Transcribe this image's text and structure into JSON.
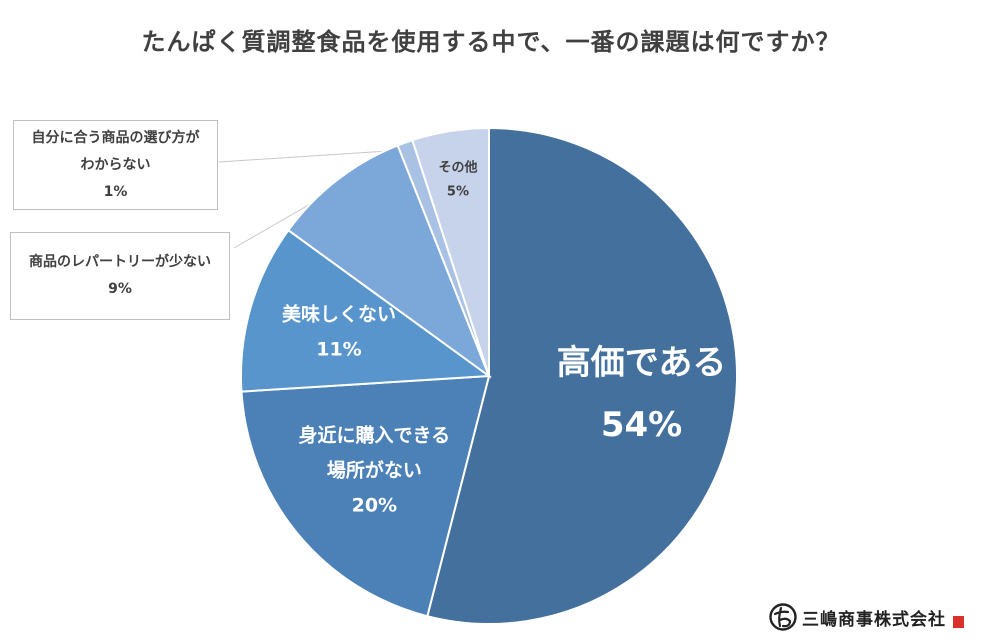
{
  "title": "たんぱく質調整食品を使用する中で、一番の課題は何ですか？",
  "brand": {
    "name": "三嶋商事株式会社"
  },
  "chart_data": {
    "type": "pie",
    "title": "たんぱく質調整食品を使用する中で、一番の課題は何ですか？",
    "start": "12 o'clock, clockwise",
    "slices": [
      {
        "label": "高価である",
        "label_lines": [
          "高価である"
        ],
        "value": 54,
        "value_label": "54%",
        "color": "#43709c",
        "label_placement": "inside"
      },
      {
        "label": "身近に購入できる場所がない",
        "label_lines": [
          "身近に購入できる",
          "場所がない"
        ],
        "value": 20,
        "value_label": "20%",
        "color": "#4c81b7",
        "label_placement": "inside"
      },
      {
        "label": "美味しくない",
        "label_lines": [
          "美味しくない"
        ],
        "value": 11,
        "value_label": "11%",
        "color": "#5895cc",
        "label_placement": "inside"
      },
      {
        "label": "商品のレパートリーが少ない",
        "label_lines": [
          "商品のレパートリーが少ない"
        ],
        "value": 9,
        "value_label": "9%",
        "color": "#7ba7d9",
        "label_placement": "callout"
      },
      {
        "label": "自分に合う商品の選び方がわからない",
        "label_lines": [
          "自分に合う商品の選び方が",
          "わからない"
        ],
        "value": 1,
        "value_label": "1%",
        "color": "#a9c1e2",
        "label_placement": "callout"
      },
      {
        "label": "その他",
        "label_lines": [
          "その他"
        ],
        "value": 5,
        "value_label": "5%",
        "color": "#c6d3ea",
        "label_placement": "inside"
      }
    ]
  }
}
